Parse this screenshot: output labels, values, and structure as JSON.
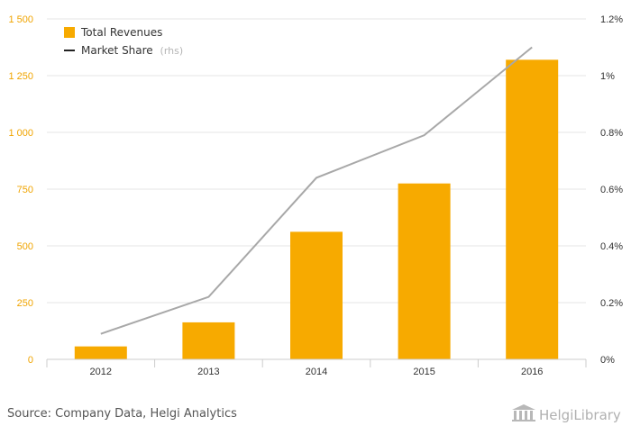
{
  "chart_data": {
    "type": "bar",
    "categories": [
      "2012",
      "2013",
      "2014",
      "2015",
      "2016"
    ],
    "series": [
      {
        "name": "Total Revenues",
        "type": "bar",
        "axis": "left",
        "color": "#f7aa00",
        "values": [
          57,
          163,
          562,
          775,
          1320
        ]
      },
      {
        "name": "Market Share",
        "type": "line",
        "axis": "right",
        "color": "#a8a8a8",
        "values": [
          0.09,
          0.22,
          0.64,
          0.79,
          1.1
        ]
      }
    ],
    "y_left": {
      "min": 0,
      "max": 1500,
      "ticks": [
        0,
        250,
        500,
        750,
        1000,
        1250,
        1500
      ],
      "tick_labels": [
        "0",
        "250",
        "500",
        "750",
        "1 000",
        "1 250",
        "1 500"
      ]
    },
    "y_right": {
      "min": 0,
      "max": 1.2,
      "ticks": [
        0,
        0.2,
        0.4,
        0.6,
        0.8,
        1.0,
        1.2
      ],
      "tick_labels": [
        "0%",
        "0.2%",
        "0.4%",
        "0.6%",
        "0.8%",
        "1%",
        "1.2%"
      ]
    },
    "grid": true,
    "legend": {
      "position": "top-left",
      "items": [
        {
          "label": "Total Revenues",
          "suffix": ""
        },
        {
          "label": "Market Share",
          "suffix": "(rhs)"
        }
      ]
    }
  },
  "footer": {
    "source": "Source: Company Data, Helgi Analytics",
    "brand": "HelgiLibrary"
  },
  "colors": {
    "bar": "#f7aa00",
    "line": "#a8a8a8",
    "grid": "#e6e6e6",
    "left_axis_text": "#f0a400"
  }
}
